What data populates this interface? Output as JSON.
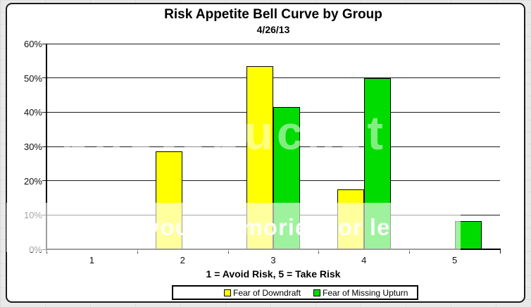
{
  "chart_data": {
    "type": "bar",
    "title": "Risk Appetite Bell Curve by Group",
    "subtitle": "4/26/13",
    "categories": [
      "1",
      "2",
      "3",
      "4",
      "5"
    ],
    "series": [
      {
        "name": "Fear of Downdraft",
        "color": "#FFFF00",
        "values": [
          0,
          28.6,
          53.4,
          17.5,
          0
        ]
      },
      {
        "name": "Fear of Missing Upturn",
        "color": "#00DC00",
        "values": [
          0,
          0,
          41.5,
          50,
          8.3
        ]
      }
    ],
    "xlabel": "1 = Avoid Risk, 5 = Take Risk",
    "ylabel": "",
    "ylim": [
      0,
      60
    ],
    "ytick_step": 10,
    "y_tick_labels": [
      "0%",
      "10%",
      "20%",
      "30%",
      "40%",
      "50%",
      "60%"
    ],
    "grid": true,
    "legend_position": "bottom",
    "bar_border_color": "#000000"
  },
  "watermark": {
    "brand": "photobucket",
    "band_text": "more of your memories for less"
  }
}
